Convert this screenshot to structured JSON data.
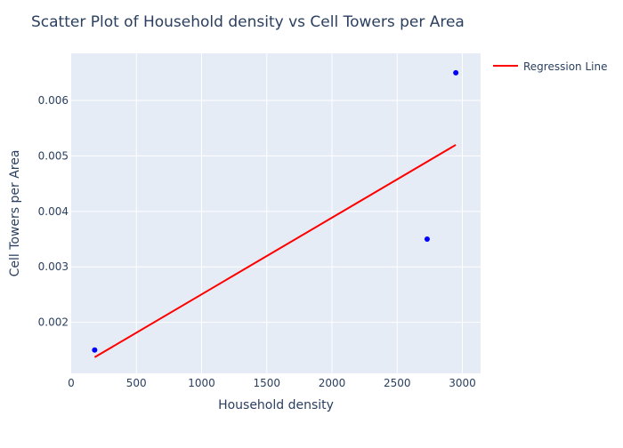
{
  "chart_data": {
    "type": "scatter",
    "title": "Scatter Plot of Household density vs Cell Towers per Area",
    "xlabel": "Household density",
    "ylabel": "Cell Towers per Area",
    "xlim": [
      0,
      3140
    ],
    "ylim": [
      0.00108,
      0.00685
    ],
    "x_ticks": [
      0,
      500,
      1000,
      1500,
      2000,
      2500,
      3000
    ],
    "x_tick_labels": [
      "0",
      "500",
      "1000",
      "1500",
      "2000",
      "2500",
      "3000"
    ],
    "y_ticks": [
      0.002,
      0.003,
      0.004,
      0.005,
      0.006
    ],
    "y_tick_labels": [
      "0.002",
      "0.003",
      "0.004",
      "0.005",
      "0.006"
    ],
    "grid": true,
    "legend_position": "top-right",
    "points": {
      "x": [
        180,
        2730,
        2950
      ],
      "y": [
        0.0015,
        0.0035,
        0.0065
      ],
      "color": "#0000ff"
    },
    "regression_line": {
      "name": "Regression Line",
      "x": [
        180,
        2950
      ],
      "y": [
        0.00137,
        0.0052
      ],
      "color": "#ff0000"
    },
    "colors": {
      "plot_background": "#e5ecf6",
      "grid": "#ffffff",
      "text": "#2a3f5f"
    }
  }
}
